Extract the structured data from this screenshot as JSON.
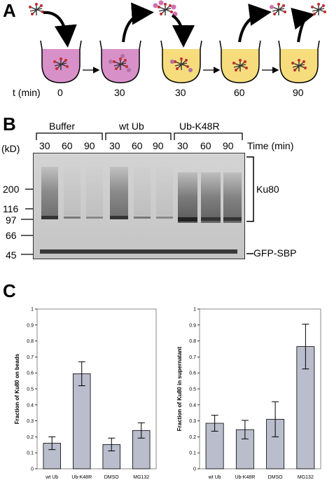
{
  "panelA": {
    "letter": "A",
    "t_label": "t (min)",
    "times": [
      "0",
      "30",
      "30",
      "60",
      "90"
    ]
  },
  "panelB": {
    "letter": "B",
    "kd_label": "(kD)",
    "groups": [
      "Buffer",
      "wt Ub",
      "Ub-K48R"
    ],
    "lane_times": [
      "30",
      "60",
      "90",
      "30",
      "60",
      "90",
      "30",
      "60",
      "90"
    ],
    "time_label": "Time (min)",
    "markers": [
      "200",
      "116",
      "97",
      "66",
      "45"
    ],
    "band_labels": {
      "ku80": "Ku80",
      "gfp": "GFP-SBP"
    }
  },
  "panelC": {
    "letter": "C"
  },
  "chart_data": [
    {
      "type": "bar",
      "categories": [
        "wt Ub",
        "Ub-K48R",
        "DMSO",
        "MG132"
      ],
      "values": [
        0.16,
        0.595,
        0.152,
        0.24
      ],
      "errors": [
        0.04,
        0.075,
        0.04,
        0.048
      ],
      "ylabel": "Fraction of Ku80 on beads",
      "ylim": [
        0,
        1
      ],
      "yticks": [
        "0",
        "0.1",
        "0.2",
        "0.3",
        "0.4",
        "0.5",
        "0.6",
        "0.7",
        "0.8",
        "0.9",
        "1"
      ],
      "bar_color": "#b9bdcc"
    },
    {
      "type": "bar",
      "categories": [
        "wt Ub",
        "Ub-K48R",
        "DMSO",
        "MG132"
      ],
      "values": [
        0.285,
        0.245,
        0.31,
        0.765
      ],
      "errors": [
        0.05,
        0.058,
        0.11,
        0.14
      ],
      "ylabel": "Fraction of Ku80 in supernatant",
      "ylim": [
        0,
        1
      ],
      "yticks": [
        "0",
        "0.1",
        "0.2",
        "0.3",
        "0.4",
        "0.5",
        "0.6",
        "0.7",
        "0.8",
        "0.9",
        "1"
      ],
      "bar_color": "#b9bdcc"
    }
  ]
}
